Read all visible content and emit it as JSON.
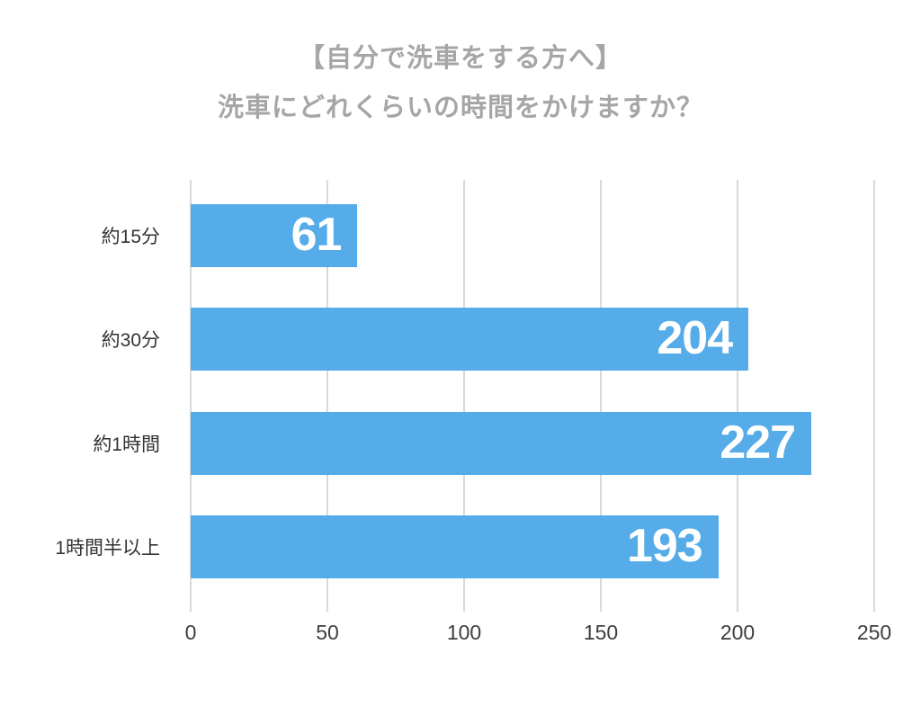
{
  "title": {
    "line1": "【自分で洗車をする方へ】",
    "line2": "洗車にどれくらいの時間をかけますか？"
  },
  "chart_data": {
    "type": "bar",
    "orientation": "horizontal",
    "title": "【自分で洗車をする方へ】 洗車にどれくらいの時間をかけますか？",
    "categories": [
      "約15分",
      "約30分",
      "約1時間",
      "1時間半以上"
    ],
    "values": [
      61,
      204,
      227,
      193
    ],
    "xlabel": "",
    "ylabel": "",
    "xlim": [
      0,
      250
    ],
    "xticks": [
      0,
      50,
      100,
      150,
      200,
      250
    ],
    "grid": true,
    "legend": "none",
    "colors": {
      "bar": "#55ace8",
      "value_label": "#ffffff",
      "title": "#a6a6a6",
      "category_label": "#333333",
      "tick_label": "#3d3d3d",
      "gridline": "#d9d9d9",
      "background": "#ffffff"
    }
  }
}
